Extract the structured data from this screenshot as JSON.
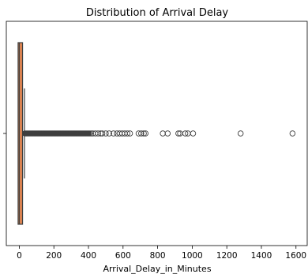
{
  "chart_data": {
    "type": "boxplot",
    "orientation": "horizontal",
    "title": "Distribution of Arrival Delay",
    "xlabel": "Arrival_Delay_in_Minutes",
    "ylabel": "",
    "xlim": [
      -75,
      1665
    ],
    "xticks": [
      0,
      200,
      400,
      600,
      800,
      1000,
      1200,
      1400,
      1600
    ],
    "xtick_labels": [
      "0",
      "200",
      "400",
      "600",
      "800",
      "1000",
      "1200",
      "1400",
      "1600"
    ],
    "ytick_labels": [],
    "grid": false,
    "box": {
      "q1": 0,
      "median": 0,
      "q3": 12,
      "whisker_low": 0,
      "whisker_high": 30,
      "fill": "#dd8452",
      "line_color": "#3f3f3f"
    },
    "outlier_band": [
      32,
      400
    ],
    "outliers": [
      405,
      415,
      425,
      440,
      455,
      470,
      480,
      500,
      520,
      545,
      565,
      580,
      595,
      610,
      625,
      640,
      690,
      705,
      720,
      730,
      830,
      858,
      920,
      930,
      960,
      975,
      1005,
      1280,
      1580
    ]
  }
}
